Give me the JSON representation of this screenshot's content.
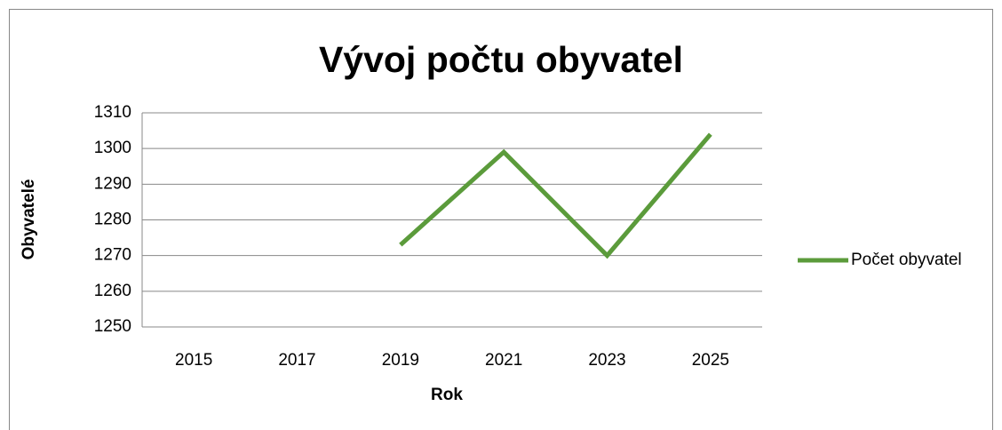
{
  "chart_data": {
    "type": "line",
    "title": "Vývoj počtu obyvatel",
    "x_label": "Rok",
    "y_label": "Obyvatelé",
    "categories": [
      "2015",
      "2017",
      "2019",
      "2021",
      "2023",
      "2025"
    ],
    "series": [
      {
        "name": "Počet obyvatel",
        "color": "#5b9b3b",
        "values": [
          null,
          null,
          1273,
          1299,
          1270,
          1304
        ]
      }
    ],
    "ylim": [
      1250,
      1310
    ],
    "yticks": [
      1250,
      1260,
      1270,
      1280,
      1290,
      1300,
      1310
    ],
    "grid": true,
    "legend": "right"
  }
}
